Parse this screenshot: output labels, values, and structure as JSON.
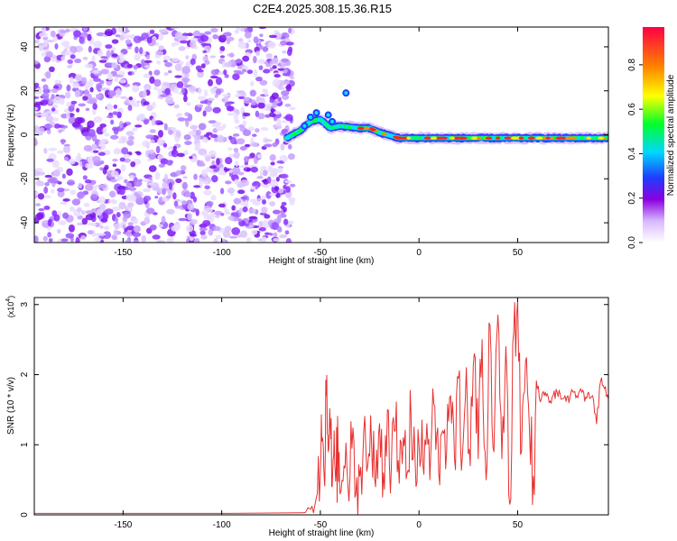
{
  "page_title": "C2E4.2025.308.15.36.R15",
  "chart_data": [
    {
      "type": "heatmap",
      "xlabel": "Height of straight line (km)",
      "ylabel": "Frequency (Hz)",
      "xlim": [
        -195,
        96
      ],
      "ylim": [
        -49,
        49
      ],
      "x_ticks": [
        -150,
        -100,
        -50,
        0,
        50
      ],
      "y_ticks": [
        -40,
        -20,
        0,
        20,
        40
      ],
      "colorbar": {
        "label": "Normalized spectral amplitude",
        "range": [
          0,
          0.97
        ],
        "ticks": [
          0.0,
          0.2,
          0.4,
          0.6,
          0.8
        ],
        "colors": [
          "#ffffff",
          "#8a00e0",
          "#1f3cff",
          "#00d8ff",
          "#00ff2a",
          "#ffff00",
          "#ff8000",
          "#ff0000"
        ]
      },
      "noise_region": {
        "x_from": -195,
        "x_to": -64,
        "y_from": -49,
        "y_to": 49
      },
      "signal_ridge": [
        {
          "x": -67,
          "y": -1.5
        },
        {
          "x": -60,
          "y": 2
        },
        {
          "x": -55,
          "y": 6
        },
        {
          "x": -50,
          "y": 7
        },
        {
          "x": -45,
          "y": 3
        },
        {
          "x": -40,
          "y": 4
        },
        {
          "x": -30,
          "y": 3
        },
        {
          "x": -25,
          "y": 3
        },
        {
          "x": -20,
          "y": 1
        },
        {
          "x": -10,
          "y": -1.5
        },
        {
          "x": 0,
          "y": -1.5
        },
        {
          "x": 20,
          "y": -1.5
        },
        {
          "x": 40,
          "y": -1.5
        },
        {
          "x": 60,
          "y": -1.5
        },
        {
          "x": 80,
          "y": -1.5
        },
        {
          "x": 96,
          "y": -1.5
        }
      ]
    },
    {
      "type": "line",
      "xlabel": "Height of straight line (km)",
      "ylabel": "SNR (10 * v/v)",
      "y_multiplier": "(x10",
      "y_multiplier_exp": "4",
      "y_multiplier_close": ")",
      "xlim": [
        -195,
        96
      ],
      "ylim": [
        0,
        3.1
      ],
      "x_ticks": [
        -150,
        -100,
        -50,
        0,
        50
      ],
      "y_ticks": [
        0,
        1,
        2,
        3
      ],
      "series": [
        {
          "color": "#e83030",
          "x": [
            -195,
            -150,
            -100,
            -60,
            -55,
            -52,
            -50,
            -49,
            -48,
            -47,
            -46,
            -45,
            -44,
            -43,
            -42,
            -41,
            -40,
            -38,
            -36,
            -34,
            -32,
            -30,
            -28,
            -26,
            -24,
            -22,
            -20,
            -18,
            -16,
            -14,
            -12,
            -10,
            -8,
            -6,
            -4,
            -2,
            0,
            2,
            4,
            6,
            8,
            10,
            12,
            14,
            16,
            18,
            20,
            22,
            24,
            26,
            28,
            30,
            32,
            34,
            36,
            38,
            40,
            42,
            44,
            46,
            48,
            50,
            52,
            54,
            56,
            58,
            60,
            62,
            64,
            66,
            68,
            70,
            72,
            74,
            76,
            78,
            80,
            82,
            84,
            86,
            88,
            90,
            92,
            94,
            96
          ],
          "y": [
            0.02,
            0.02,
            0.02,
            0.03,
            0.08,
            0.25,
            0.6,
            1.1,
            0.5,
            1.7,
            0.9,
            1.3,
            0.4,
            1.2,
            0.6,
            0.9,
            0.3,
            0.7,
            0.4,
            0.95,
            0.3,
            0.55,
            1.2,
            0.7,
            1.0,
            0.4,
            1.3,
            0.6,
            1.5,
            0.7,
            1.2,
            0.45,
            1.1,
            0.6,
            1.4,
            0.8,
            1.0,
            0.7,
            1.3,
            0.9,
            1.55,
            0.6,
            1.2,
            0.9,
            1.7,
            0.8,
            1.95,
            0.85,
            2.1,
            0.7,
            2.3,
            0.8,
            2.5,
            0.5,
            2.7,
            0.9,
            2.85,
            0.8,
            2.4,
            0.15,
            2.6,
            3.05,
            0.9,
            2.2,
            1.2,
            0.55,
            1.8,
            1.65,
            1.75,
            1.6,
            1.7,
            1.75,
            1.65,
            1.7,
            1.6,
            1.75,
            1.7,
            1.8,
            1.62,
            1.75,
            1.7,
            1.3,
            1.9,
            1.8,
            1.65
          ]
        }
      ]
    }
  ]
}
